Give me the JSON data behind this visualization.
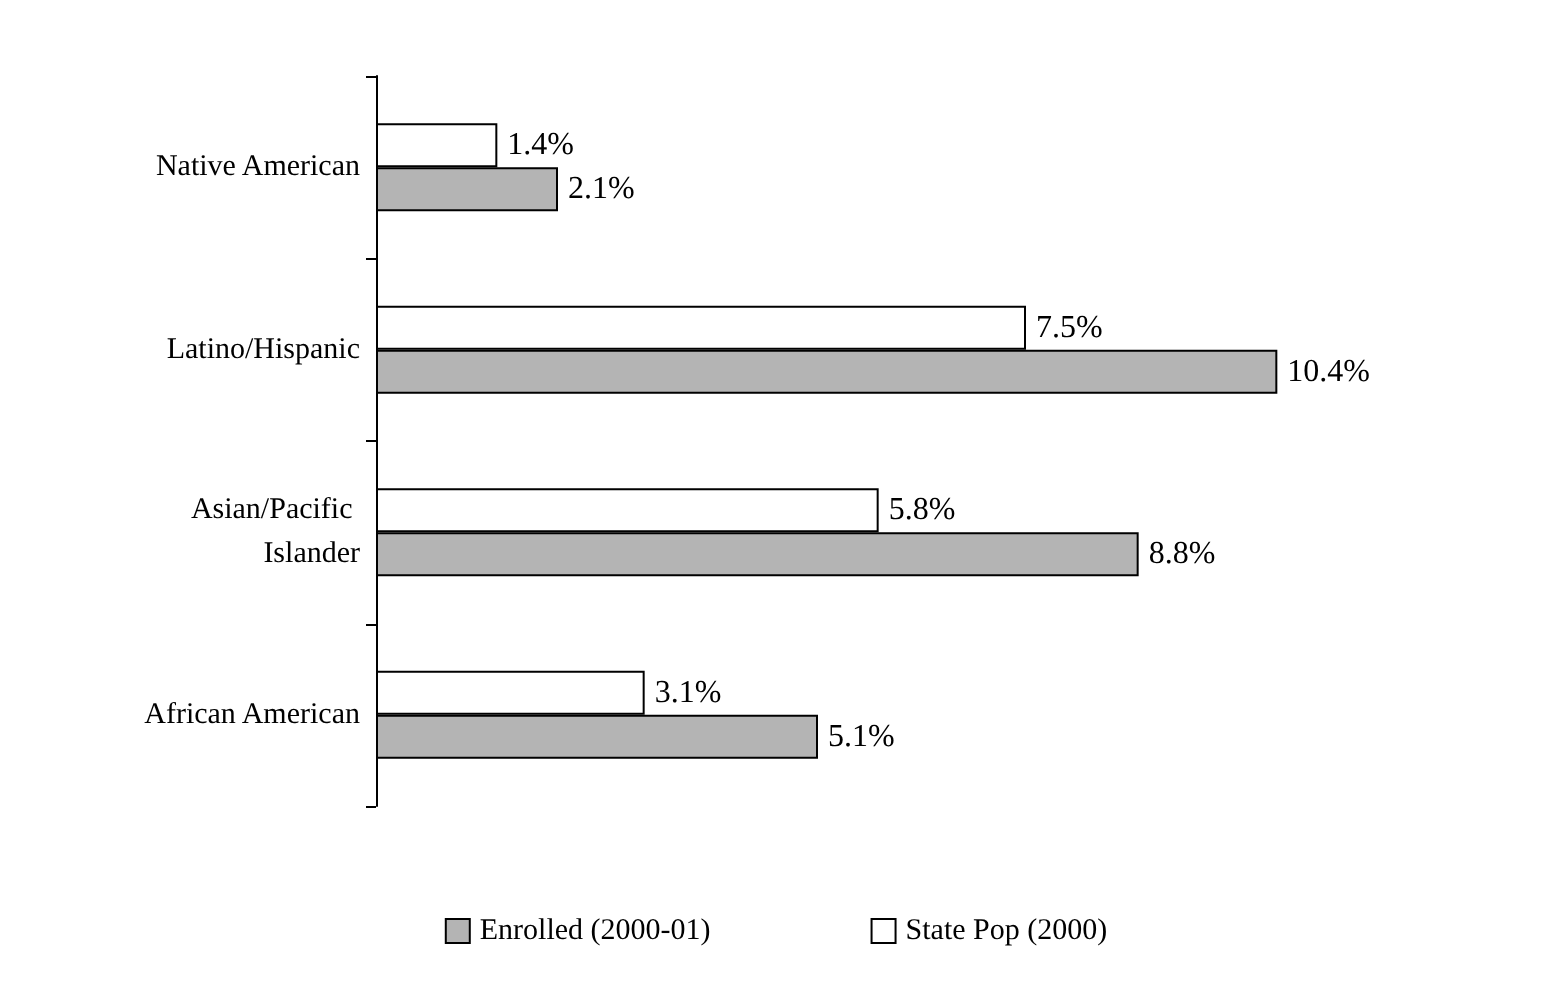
{
  "chart_data": {
    "type": "bar",
    "orientation": "horizontal",
    "categories": [
      "Native American",
      "Latino/Hispanic",
      "Asian/Pacific Islander",
      "African American"
    ],
    "series": [
      {
        "name": "State Pop (2000)",
        "color": "#ffffff",
        "values": [
          1.4,
          7.5,
          5.8,
          3.1
        ],
        "value_labels": [
          "1.4%",
          "7.5%",
          "5.8%",
          "3.1%"
        ]
      },
      {
        "name": "Enrolled (2000-01)",
        "color": "#b4b4b4",
        "values": [
          2.1,
          10.4,
          8.8,
          5.1
        ],
        "value_labels": [
          "2.1%",
          "10.4%",
          "8.8%",
          "5.1%"
        ]
      }
    ],
    "legend": "bottom",
    "tick_labels": "y"
  }
}
